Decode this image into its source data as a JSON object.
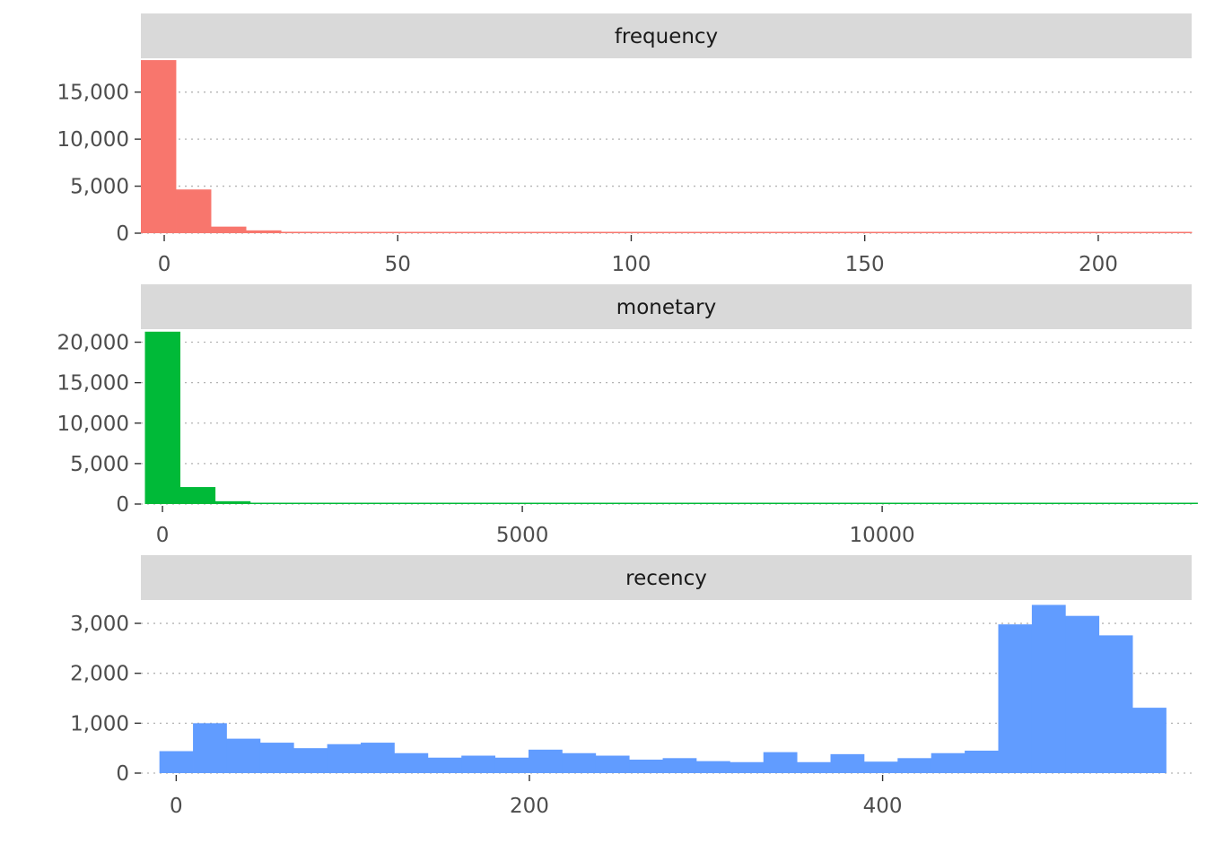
{
  "chart_data": [
    {
      "type": "bar",
      "facet": "frequency",
      "color": "#F8766D",
      "xlim": [
        -5,
        220
      ],
      "ylim": [
        0,
        18500
      ],
      "xticks": [
        0,
        50,
        100,
        150,
        200
      ],
      "xtick_labels": [
        "0",
        "50",
        "100",
        "150",
        "200"
      ],
      "yticks": [
        0,
        5000,
        10000,
        15000
      ],
      "ytick_labels": [
        "0",
        "5,000",
        "10,000",
        "15,000"
      ],
      "bin_width": 7.5,
      "bins_x": [
        -1.25,
        6.25,
        13.75,
        21.25,
        28.75,
        36.25,
        43.75,
        51.25,
        58.75,
        66.25,
        73.75,
        81.25,
        88.75,
        96.25,
        103.75,
        111.25,
        118.75,
        126.25,
        133.75,
        141.25,
        148.75,
        156.25,
        163.75,
        171.25,
        178.75,
        186.25,
        193.75,
        201.25,
        208.75,
        216.25
      ],
      "values": [
        18400,
        4650,
        700,
        300,
        150,
        90,
        50,
        30,
        20,
        15,
        10,
        8,
        6,
        5,
        4,
        3,
        3,
        2,
        2,
        2,
        1,
        1,
        1,
        1,
        1,
        1,
        1,
        1,
        1,
        1
      ]
    },
    {
      "type": "bar",
      "facet": "monetary",
      "color": "#00BA38",
      "xlim": [
        -300,
        14300
      ],
      "ylim": [
        0,
        21500
      ],
      "xticks": [
        0,
        5000,
        10000
      ],
      "xtick_labels": [
        "0",
        "5000",
        "10000"
      ],
      "yticks": [
        0,
        5000,
        10000,
        15000,
        20000
      ],
      "ytick_labels": [
        "0",
        "5,000",
        "10,000",
        "15,000",
        "20,000"
      ],
      "bin_width": 487.5,
      "bins_x": [
        0,
        487.5,
        975,
        1462.5,
        1950,
        2437.5,
        2925,
        3412.5,
        3900,
        4387.5,
        4875,
        5362.5,
        5850,
        6337.5,
        6825,
        7312.5,
        7800,
        8287.5,
        8775,
        9262.5,
        9750,
        10237.5,
        10725,
        11212.5,
        11700,
        12187.5,
        12675,
        13162.5,
        13650,
        14137.5
      ],
      "values": [
        21300,
        2100,
        350,
        90,
        40,
        20,
        12,
        8,
        6,
        5,
        4,
        3,
        2,
        2,
        2,
        1,
        1,
        1,
        1,
        1,
        1,
        1,
        1,
        1,
        1,
        1,
        1,
        1,
        1,
        1
      ]
    },
    {
      "type": "bar",
      "facet": "recency",
      "color": "#619CFF",
      "xlim": [
        -20,
        575
      ],
      "ylim": [
        0,
        3450
      ],
      "xticks": [
        0,
        200,
        400
      ],
      "xtick_labels": [
        "0",
        "200",
        "400"
      ],
      "yticks": [
        0,
        1000,
        2000,
        3000
      ],
      "ytick_labels": [
        "0",
        "1,000",
        "2,000",
        "3,000"
      ],
      "bin_width": 19,
      "bins_x": [
        0,
        19,
        38,
        57,
        76,
        95,
        114,
        133,
        152,
        171,
        190,
        209,
        228,
        247,
        266,
        285,
        304,
        323,
        342,
        361,
        380,
        399,
        418,
        437,
        456,
        475,
        494,
        513,
        532,
        551
      ],
      "values": [
        440,
        1000,
        690,
        610,
        500,
        580,
        610,
        400,
        310,
        350,
        310,
        470,
        400,
        350,
        270,
        300,
        240,
        220,
        420,
        220,
        380,
        230,
        300,
        400,
        450,
        2980,
        3370,
        3150,
        2760,
        1310
      ]
    }
  ]
}
